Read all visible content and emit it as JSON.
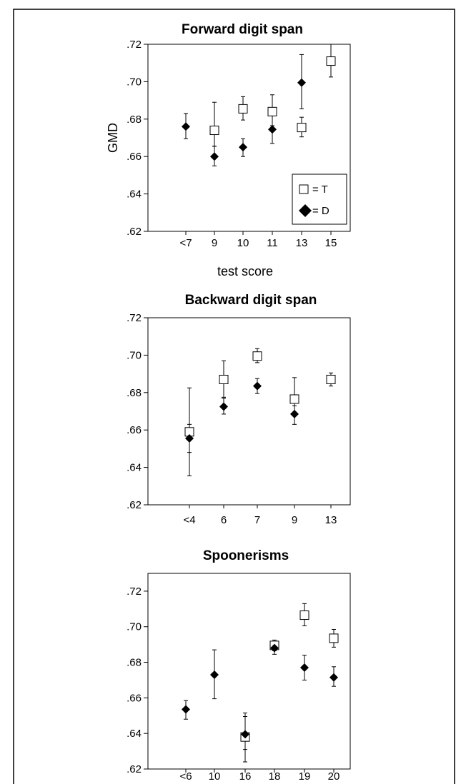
{
  "chart_data": [
    {
      "type": "scatter",
      "title": "Forward digit span",
      "xlabel": "test score",
      "ylabel": "GMD",
      "categories": [
        "<7",
        "9",
        "10",
        "11",
        "13",
        "15"
      ],
      "ylim": [
        0.62,
        0.72
      ],
      "yticks": [
        ".62",
        ".64",
        ".66",
        ".68",
        ".70",
        ".72"
      ],
      "legend": {
        "position": "bottom-right",
        "entries": [
          {
            "marker": "open-square",
            "label": "= T"
          },
          {
            "marker": "filled-diamond",
            "label": "= D"
          }
        ]
      },
      "series": [
        {
          "name": "T",
          "marker": "open-square",
          "points": [
            {
              "x": "9",
              "y": 0.674,
              "lo": 0.6655,
              "hi": 0.689
            },
            {
              "x": "10",
              "y": 0.6855,
              "lo": 0.6795,
              "hi": 0.692
            },
            {
              "x": "11",
              "y": 0.684,
              "lo": 0.6765,
              "hi": 0.693
            },
            {
              "x": "13",
              "y": 0.6755,
              "lo": 0.6705,
              "hi": 0.681
            },
            {
              "x": "15",
              "y": 0.711,
              "lo": 0.7025,
              "hi": 0.72
            }
          ]
        },
        {
          "name": "D",
          "marker": "filled-diamond",
          "points": [
            {
              "x": "<7",
              "y": 0.676,
              "lo": 0.6695,
              "hi": 0.683
            },
            {
              "x": "9",
              "y": 0.66,
              "lo": 0.655,
              "hi": 0.6655
            },
            {
              "x": "10",
              "y": 0.665,
              "lo": 0.66,
              "hi": 0.6695
            },
            {
              "x": "11",
              "y": 0.6745,
              "lo": 0.667,
              "hi": 0.6835
            },
            {
              "x": "13",
              "y": 0.6995,
              "lo": 0.6855,
              "hi": 0.7145
            }
          ]
        }
      ]
    },
    {
      "type": "scatter",
      "title": "Backward digit span",
      "xlabel": "",
      "ylabel": "",
      "categories": [
        "<4",
        "6",
        "7",
        "9",
        "13"
      ],
      "ylim": [
        0.62,
        0.72
      ],
      "yticks": [
        ".62",
        ".64",
        ".66",
        ".68",
        ".70",
        ".72"
      ],
      "series": [
        {
          "name": "T",
          "marker": "open-square",
          "points": [
            {
              "x": "<4",
              "y": 0.659,
              "lo": 0.648,
              "hi": 0.663
            },
            {
              "x": "6",
              "y": 0.687,
              "lo": 0.6775,
              "hi": 0.697
            },
            {
              "x": "7",
              "y": 0.6995,
              "lo": 0.696,
              "hi": 0.7035
            },
            {
              "x": "9",
              "y": 0.6765,
              "lo": 0.668,
              "hi": 0.688
            },
            {
              "x": "13",
              "y": 0.687,
              "lo": 0.6835,
              "hi": 0.6905
            }
          ]
        },
        {
          "name": "D",
          "marker": "filled-diamond",
          "points": [
            {
              "x": "<4",
              "y": 0.6555,
              "lo": 0.6355,
              "hi": 0.6825
            },
            {
              "x": "6",
              "y": 0.6725,
              "lo": 0.6685,
              "hi": 0.677
            },
            {
              "x": "7",
              "y": 0.6835,
              "lo": 0.6795,
              "hi": 0.6875
            },
            {
              "x": "9",
              "y": 0.6685,
              "lo": 0.663,
              "hi": 0.673
            }
          ]
        }
      ]
    },
    {
      "type": "scatter",
      "title": "Spoonerisms",
      "xlabel": "",
      "ylabel": "",
      "categories": [
        "<6",
        "10",
        "16",
        "18",
        "19",
        "20"
      ],
      "ylim": [
        0.62,
        0.73
      ],
      "yticks": [
        ".62",
        ".64",
        ".66",
        ".68",
        ".70",
        ".72"
      ],
      "series": [
        {
          "name": "T",
          "marker": "open-square",
          "points": [
            {
              "x": "16",
              "y": 0.638,
              "lo": 0.631,
              "hi": 0.6495
            },
            {
              "x": "18",
              "y": 0.6895,
              "lo": 0.6865,
              "hi": 0.6925
            },
            {
              "x": "19",
              "y": 0.7065,
              "lo": 0.7005,
              "hi": 0.713
            },
            {
              "x": "20",
              "y": 0.6935,
              "lo": 0.6885,
              "hi": 0.6985
            }
          ]
        },
        {
          "name": "D",
          "marker": "filled-diamond",
          "points": [
            {
              "x": "<6",
              "y": 0.6535,
              "lo": 0.648,
              "hi": 0.6585
            },
            {
              "x": "10",
              "y": 0.673,
              "lo": 0.6595,
              "hi": 0.687
            },
            {
              "x": "16",
              "y": 0.6395,
              "lo": 0.624,
              "hi": 0.6515
            },
            {
              "x": "18",
              "y": 0.688,
              "lo": 0.6845,
              "hi": 0.6915
            },
            {
              "x": "19",
              "y": 0.677,
              "lo": 0.67,
              "hi": 0.684
            },
            {
              "x": "20",
              "y": 0.6715,
              "lo": 0.6665,
              "hi": 0.6775
            }
          ]
        }
      ]
    }
  ]
}
